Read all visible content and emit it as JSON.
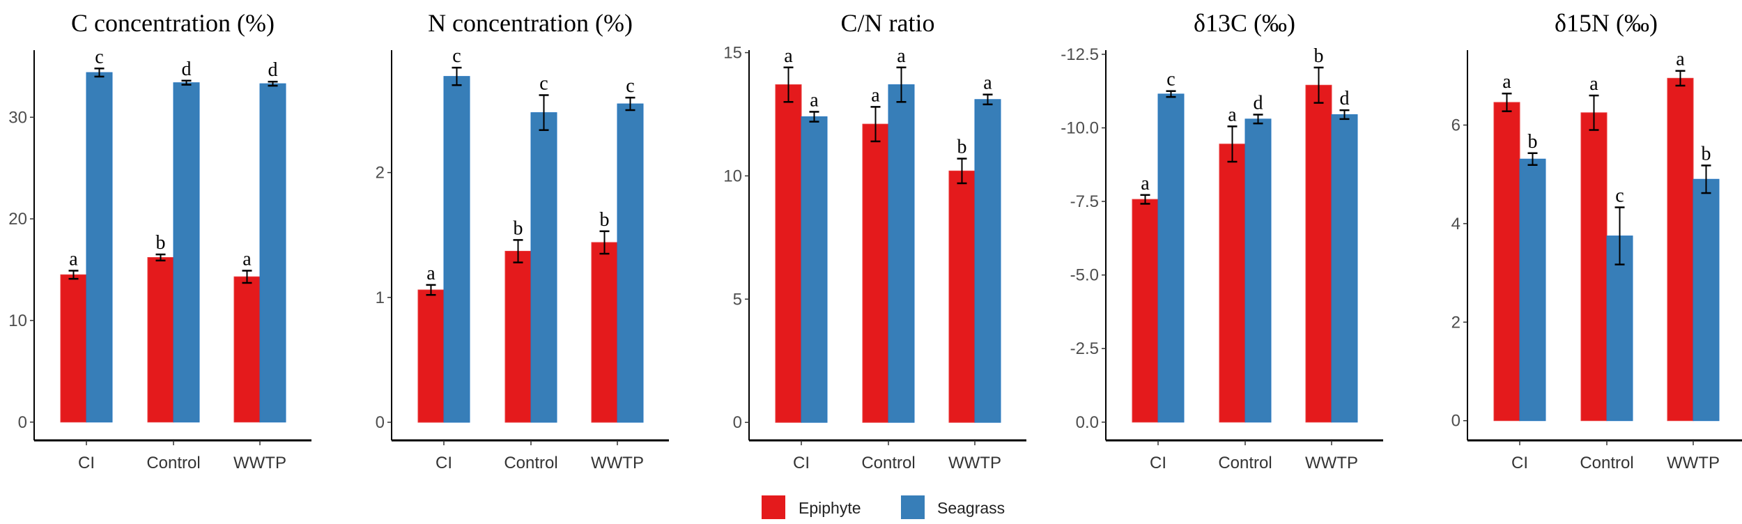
{
  "chart_data": {
    "type": "bar",
    "categories": [
      "CI",
      "Control",
      "WWTP"
    ],
    "legend": {
      "position": "bottom",
      "entries": [
        {
          "name": "Epiphyte",
          "color": "#E41A1C"
        },
        {
          "name": "Seagrass",
          "color": "#377EB8"
        }
      ]
    },
    "panels": [
      {
        "title": "C concentration (%)",
        "title_prefix": "C concentration (%)",
        "title_sup": "",
        "title_suffix": "",
        "ylim": [
          -1.8,
          36.6
        ],
        "ticks": [
          0,
          10,
          20,
          30
        ],
        "tick_labels": [
          "0",
          "10",
          "20",
          "30"
        ],
        "series": [
          {
            "name": "Epiphyte",
            "values": [
              14.5,
              16.2,
              14.3
            ],
            "errors": [
              0.4,
              0.3,
              0.6
            ],
            "letters": [
              "a",
              "b",
              "a"
            ]
          },
          {
            "name": "Seagrass",
            "values": [
              34.4,
              33.4,
              33.3
            ],
            "errors": [
              0.4,
              0.2,
              0.2
            ],
            "letters": [
              "c",
              "d",
              "d"
            ]
          }
        ]
      },
      {
        "title": "N concentration (%)",
        "title_prefix": "N concentration (%)",
        "title_sup": "",
        "title_suffix": "",
        "ylim": [
          -0.145,
          2.98
        ],
        "ticks": [
          0,
          1,
          2
        ],
        "tick_labels": [
          "0",
          "1",
          "2"
        ],
        "series": [
          {
            "name": "Epiphyte",
            "values": [
              1.06,
              1.37,
              1.44
            ],
            "errors": [
              0.04,
              0.09,
              0.09
            ],
            "letters": [
              "a",
              "b",
              "b"
            ]
          },
          {
            "name": "Seagrass",
            "values": [
              2.77,
              2.48,
              2.55
            ],
            "errors": [
              0.07,
              0.14,
              0.05
            ],
            "letters": [
              "c",
              "c",
              "c"
            ]
          }
        ]
      },
      {
        "title": "C/N ratio",
        "title_prefix": "C/N ratio",
        "title_sup": "",
        "title_suffix": "",
        "ylim": [
          -0.73,
          15.1
        ],
        "ticks": [
          0,
          5,
          10,
          15
        ],
        "tick_labels": [
          "0",
          "5",
          "10",
          "15"
        ],
        "series": [
          {
            "name": "Epiphyte",
            "values": [
              13.7,
              12.1,
              10.2
            ],
            "errors": [
              0.7,
              0.7,
              0.5
            ],
            "letters": [
              "a",
              "a",
              "b"
            ]
          },
          {
            "name": "Seagrass",
            "values": [
              12.4,
              13.7,
              13.1
            ],
            "errors": [
              0.2,
              0.7,
              0.2
            ],
            "letters": [
              "a",
              "a",
              "a"
            ]
          }
        ]
      },
      {
        "title": "δ13C (‰)",
        "title_prefix": "δ",
        "title_sup": "13",
        "title_suffix": "C (‰)",
        "ylim": [
          0.62,
          -12.64
        ],
        "ticks": [
          0,
          -2.5,
          -5,
          -7.5,
          -10,
          -12.5
        ],
        "tick_labels": [
          "0.0",
          "-2.5",
          "-5.0",
          "-7.5",
          "-10.0",
          "-12.5"
        ],
        "series": [
          {
            "name": "Epiphyte",
            "values": [
              -7.57,
              -9.45,
              -11.45
            ],
            "errors": [
              0.15,
              0.6,
              0.6
            ],
            "letters": [
              "a",
              "a",
              "b"
            ]
          },
          {
            "name": "Seagrass",
            "values": [
              -11.15,
              -10.3,
              -10.45
            ],
            "errors": [
              0.1,
              0.15,
              0.15
            ],
            "letters": [
              "c",
              "d",
              "d"
            ]
          }
        ]
      },
      {
        "title": "δ15N (‰)",
        "title_prefix": "δ",
        "title_sup": "15",
        "title_suffix": "N (‰)",
        "ylim": [
          -0.4,
          7.52
        ],
        "ticks": [
          0,
          2,
          4,
          6
        ],
        "tick_labels": [
          "0",
          "2",
          "4",
          "6"
        ],
        "series": [
          {
            "name": "Epiphyte",
            "values": [
              6.46,
              6.25,
              6.95
            ],
            "errors": [
              0.18,
              0.35,
              0.15
            ],
            "letters": [
              "a",
              "a",
              "a"
            ]
          },
          {
            "name": "Seagrass",
            "values": [
              5.31,
              3.75,
              4.9
            ],
            "errors": [
              0.12,
              0.58,
              0.28
            ],
            "letters": [
              "b",
              "c",
              "b"
            ]
          }
        ]
      }
    ]
  }
}
